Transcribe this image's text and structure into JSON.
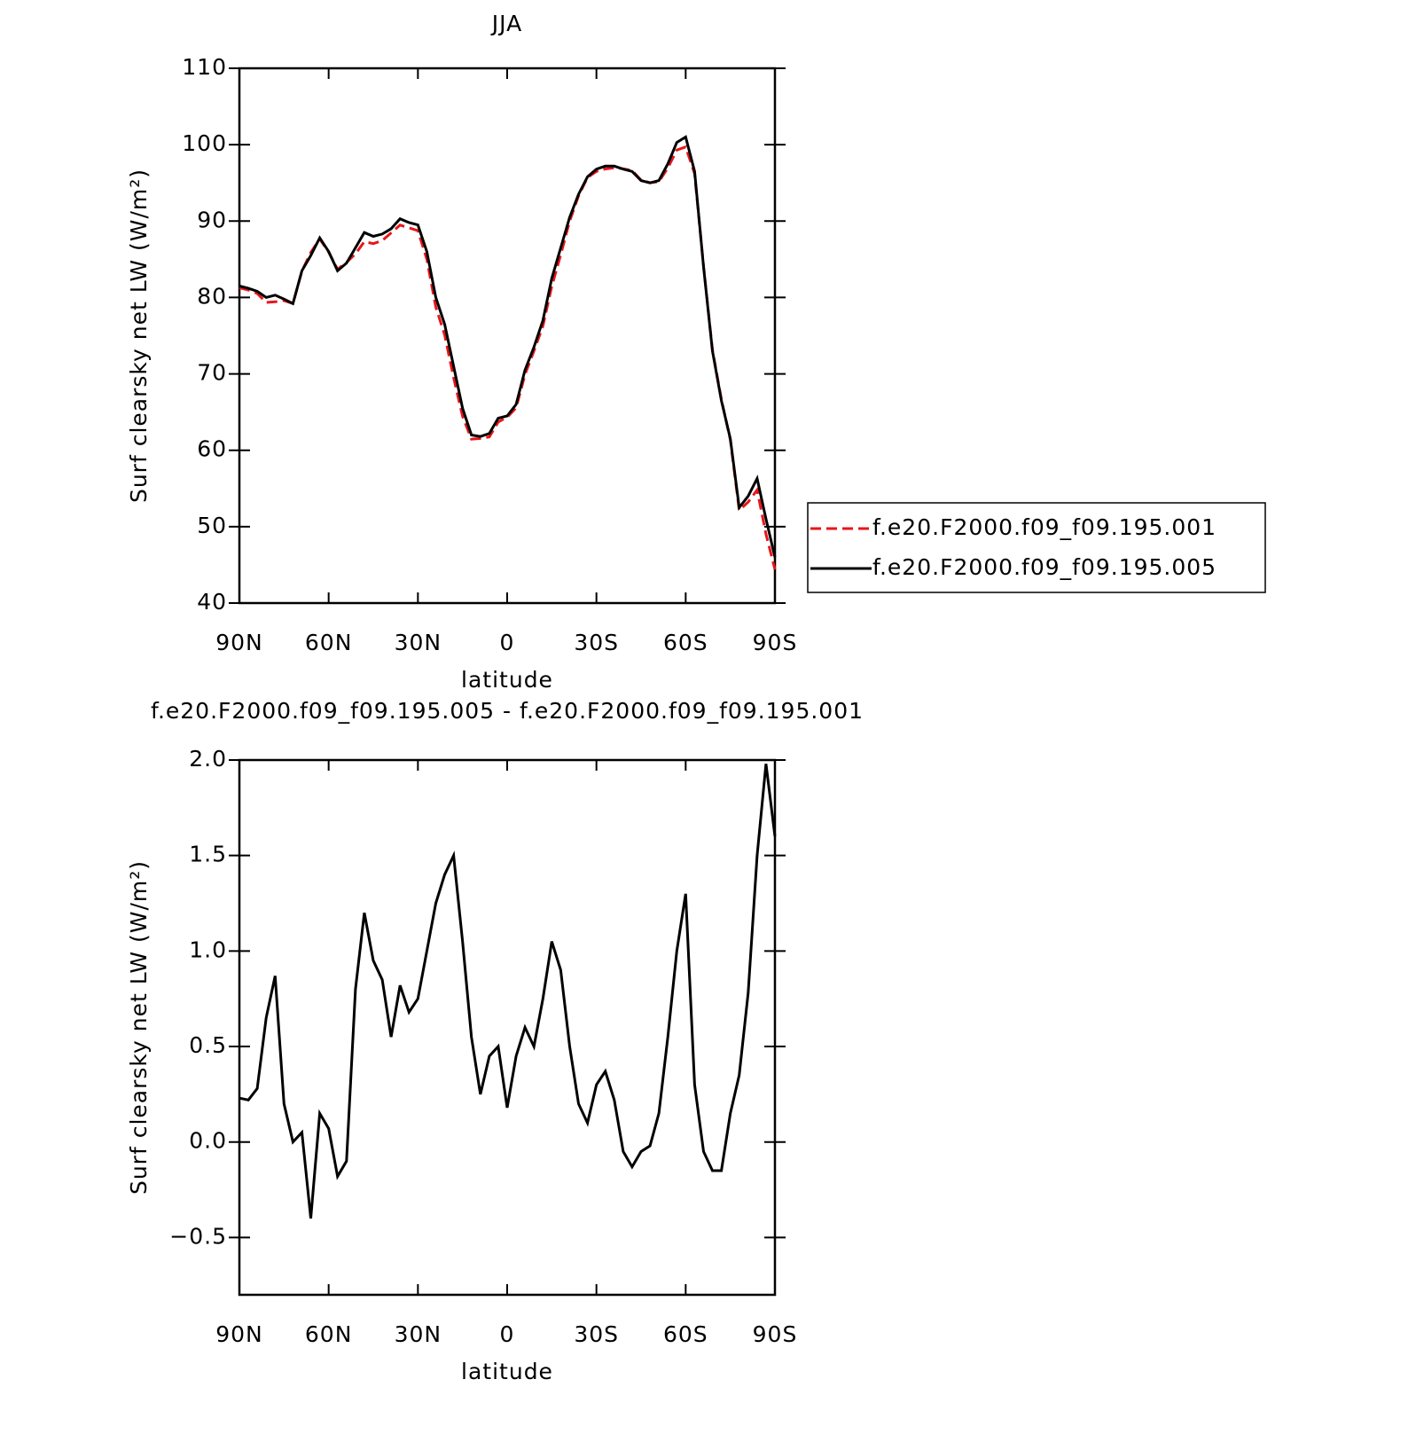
{
  "chart_data": [
    {
      "type": "line",
      "title": "JJA",
      "xlabel": "latitude",
      "ylabel": "Surf clearsky net LW (W/m²)",
      "x": [
        90,
        87,
        84,
        81,
        78,
        75,
        72,
        69,
        66,
        63,
        60,
        57,
        54,
        51,
        48,
        45,
        42,
        39,
        36,
        33,
        30,
        27,
        24,
        21,
        18,
        15,
        12,
        9,
        6,
        3,
        0,
        -3,
        -6,
        -9,
        -12,
        -15,
        -18,
        -21,
        -24,
        -27,
        -30,
        -33,
        -36,
        -39,
        -42,
        -45,
        -48,
        -51,
        -54,
        -57,
        -60,
        -63,
        -66,
        -69,
        -72,
        -75,
        -78,
        -81,
        -84,
        -87,
        -90
      ],
      "series": [
        {
          "name": "f.e20.F2000.f09_f09.195.001",
          "color": "#e8161b",
          "style": "dashed",
          "values": [
            81.27,
            80.98,
            80.52,
            79.35,
            79.43,
            79.6,
            79.2,
            83.45,
            85.9,
            87.65,
            85.93,
            83.68,
            84.6,
            85.7,
            87.3,
            87.05,
            87.45,
            88.45,
            89.48,
            89.12,
            88.75,
            85,
            78.75,
            75.1,
            69.5,
            64.45,
            61.45,
            61.55,
            61.75,
            63.7,
            64.32,
            65.55,
            69.9,
            73,
            76.25,
            81.45,
            85.6,
            90,
            93.3,
            95.7,
            96.5,
            96.83,
            96.98,
            96.85,
            96.63,
            95.35,
            95.02,
            95.15,
            96.95,
            99.3,
            99.7,
            96.2,
            84.05,
            73.15,
            66.65,
            61.35,
            52.15,
            53.22,
            54.8,
            49.02,
            44.4
          ]
        },
        {
          "name": "f.e20.F2000.f09_f09.195.005",
          "color": "#000000",
          "style": "solid",
          "values": [
            81.5,
            81.2,
            80.8,
            80,
            80.3,
            79.8,
            79.2,
            83.5,
            85.5,
            87.8,
            86,
            83.5,
            84.5,
            86.5,
            88.5,
            88,
            88.3,
            89,
            90.3,
            89.8,
            89.5,
            86,
            80,
            76.5,
            71,
            65.5,
            62,
            61.8,
            62.2,
            64.2,
            64.5,
            66,
            70.5,
            73.5,
            77,
            82.5,
            86.5,
            90.5,
            93.5,
            95.8,
            96.8,
            97.2,
            97.2,
            96.8,
            96.5,
            95.3,
            95,
            95.3,
            97.5,
            100.3,
            101,
            96.5,
            84,
            73,
            66.5,
            61.5,
            52.5,
            54,
            56.3,
            51,
            46
          ]
        }
      ],
      "xlim": [
        90,
        -90
      ],
      "xticks": [
        {
          "value": 90,
          "label": "90N"
        },
        {
          "value": 60,
          "label": "60N"
        },
        {
          "value": 30,
          "label": "30N"
        },
        0,
        {
          "value": -30,
          "label": "30S"
        },
        {
          "value": -60,
          "label": "60S"
        },
        {
          "value": -90,
          "label": "90S"
        }
      ],
      "ylim": [
        40,
        110
      ],
      "yticks": [
        40,
        50,
        60,
        70,
        80,
        90,
        100,
        110
      ],
      "legend": "right"
    },
    {
      "type": "line",
      "title": "f.e20.F2000.f09_f09.195.005 - f.e20.F2000.f09_f09.195.001",
      "xlabel": "latitude",
      "ylabel": "Surf clearsky net LW (W/m²)",
      "x": [
        90,
        87,
        84,
        81,
        78,
        75,
        72,
        69,
        66,
        63,
        60,
        57,
        54,
        51,
        48,
        45,
        42,
        39,
        36,
        33,
        30,
        27,
        24,
        21,
        18,
        15,
        12,
        9,
        6,
        3,
        0,
        -3,
        -6,
        -9,
        -12,
        -15,
        -18,
        -21,
        -24,
        -27,
        -30,
        -33,
        -36,
        -39,
        -42,
        -45,
        -48,
        -51,
        -54,
        -57,
        -60,
        -63,
        -66,
        -69,
        -72,
        -75,
        -78,
        -81,
        -84,
        -87,
        -90
      ],
      "series": [
        {
          "color": "#000000",
          "style": "solid",
          "values": [
            0.23,
            0.22,
            0.28,
            0.65,
            0.87,
            0.2,
            0.0,
            0.05,
            -0.4,
            0.15,
            0.07,
            -0.18,
            -0.1,
            0.8,
            1.2,
            0.95,
            0.85,
            0.55,
            0.82,
            0.68,
            0.75,
            1.0,
            1.25,
            1.4,
            1.5,
            1.05,
            0.55,
            0.25,
            0.45,
            0.5,
            0.18,
            0.45,
            0.6,
            0.5,
            0.75,
            1.05,
            0.9,
            0.5,
            0.2,
            0.1,
            0.3,
            0.37,
            0.22,
            -0.05,
            -0.13,
            -0.05,
            -0.02,
            0.15,
            0.55,
            1.0,
            1.3,
            0.3,
            -0.05,
            -0.15,
            -0.15,
            0.15,
            0.35,
            0.78,
            1.5,
            1.98,
            1.6
          ]
        }
      ],
      "xlim": [
        90,
        -90
      ],
      "xticks": [
        {
          "value": 90,
          "label": "90N"
        },
        {
          "value": 60,
          "label": "60N"
        },
        {
          "value": 30,
          "label": "30N"
        },
        0,
        {
          "value": -30,
          "label": "30S"
        },
        {
          "value": -60,
          "label": "60S"
        },
        {
          "value": -90,
          "label": "90S"
        }
      ],
      "ylim": [
        -0.8,
        2.0
      ],
      "yticks": [
        {
          "value": -0.5,
          "label": "−0.5"
        },
        {
          "value": 0,
          "label": "0.0"
        },
        0.5,
        {
          "value": 1,
          "label": "1.0"
        },
        1.5,
        {
          "value": 2,
          "label": "2.0"
        }
      ]
    }
  ]
}
